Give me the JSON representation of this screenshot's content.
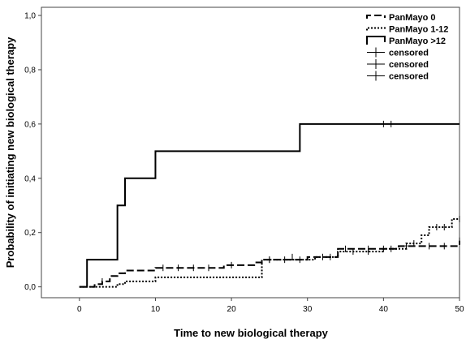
{
  "chart_data": {
    "type": "line",
    "title": "",
    "xlabel": "Time to new biological therapy",
    "ylabel": "Probability of initiating new biological therapy",
    "xlim": [
      -5,
      50
    ],
    "ylim": [
      -0.04,
      1.03
    ],
    "x_ticks": [
      0,
      10,
      20,
      30,
      40,
      50
    ],
    "y_ticks": [
      0.0,
      0.2,
      0.4,
      0.6,
      0.8,
      1.0
    ],
    "x_tick_labels": [
      "0",
      "10",
      "20",
      "30",
      "40",
      "50"
    ],
    "y_tick_labels": [
      "0,0",
      "0,2",
      "0,4",
      "0,6",
      "0,8",
      "1,0"
    ],
    "grid": false,
    "legend_position": "top-right",
    "series": [
      {
        "name": "PanMayo 0",
        "style": "dashed",
        "color": "#000000",
        "steps": [
          [
            0,
            0.0
          ],
          [
            2,
            0.01
          ],
          [
            3,
            0.02
          ],
          [
            4,
            0.04
          ],
          [
            5,
            0.05
          ],
          [
            6,
            0.06
          ],
          [
            10,
            0.07
          ],
          [
            19,
            0.08
          ],
          [
            23,
            0.09
          ],
          [
            24,
            0.1
          ],
          [
            30,
            0.11
          ],
          [
            34,
            0.14
          ],
          [
            42,
            0.15
          ],
          [
            50,
            0.17
          ]
        ],
        "end": 50,
        "censored": [
          [
            3,
            0.02
          ],
          [
            11,
            0.07
          ],
          [
            13,
            0.07
          ],
          [
            15,
            0.07
          ],
          [
            17,
            0.07
          ],
          [
            20,
            0.08
          ],
          [
            25,
            0.1
          ],
          [
            28,
            0.11
          ],
          [
            32,
            0.11
          ],
          [
            35,
            0.14
          ],
          [
            38,
            0.14
          ],
          [
            40,
            0.14
          ],
          [
            43,
            0.15
          ],
          [
            46,
            0.15
          ],
          [
            48,
            0.15
          ],
          [
            50,
            0.17
          ]
        ]
      },
      {
        "name": "PanMayo 1-12",
        "style": "dotted",
        "color": "#000000",
        "steps": [
          [
            0,
            0.0
          ],
          [
            5,
            0.01
          ],
          [
            6,
            0.02
          ],
          [
            10,
            0.035
          ],
          [
            24,
            0.1
          ],
          [
            31,
            0.11
          ],
          [
            34,
            0.13
          ],
          [
            40,
            0.14
          ],
          [
            43,
            0.16
          ],
          [
            45,
            0.19
          ],
          [
            46,
            0.22
          ],
          [
            49,
            0.25
          ]
        ],
        "end": 50,
        "censored": [
          [
            25,
            0.1
          ],
          [
            27,
            0.1
          ],
          [
            29,
            0.1
          ],
          [
            33,
            0.11
          ],
          [
            36,
            0.13
          ],
          [
            38,
            0.13
          ],
          [
            41,
            0.14
          ],
          [
            44,
            0.16
          ],
          [
            47,
            0.22
          ],
          [
            48,
            0.22
          ],
          [
            50,
            0.25
          ]
        ]
      },
      {
        "name": "PanMayo >12",
        "style": "solid",
        "color": "#000000",
        "steps": [
          [
            0,
            0.0
          ],
          [
            1,
            0.1
          ],
          [
            5,
            0.3
          ],
          [
            6,
            0.4
          ],
          [
            10,
            0.5
          ],
          [
            29,
            0.6
          ]
        ],
        "end": 50,
        "censored": [
          [
            40,
            0.6
          ],
          [
            41,
            0.6
          ]
        ]
      }
    ],
    "legend": [
      {
        "label": "PanMayo 0",
        "style": "dashed"
      },
      {
        "label": "PanMayo 1-12",
        "style": "dotted"
      },
      {
        "label": "PanMayo >12",
        "style": "solid"
      },
      {
        "label": "censored",
        "style": "censor-mark"
      },
      {
        "label": "censored",
        "style": "censor-mark"
      },
      {
        "label": "censored",
        "style": "censor-mark"
      }
    ]
  }
}
